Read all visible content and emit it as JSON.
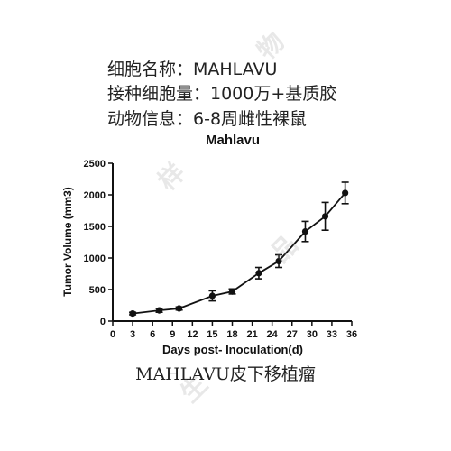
{
  "info": {
    "line1": "细胞名称：MAHLAVU",
    "line2": "接种细胞量：1000万+基质胶",
    "line3": "动物信息：6-8周雌性裸鼠"
  },
  "caption": "MAHLAVU皮下移植瘤",
  "watermark": [
    "样",
    "品",
    "物",
    "生"
  ],
  "chart_data": {
    "type": "line",
    "title": "Mahlavu",
    "xlabel": "Days post- Inoculation(d)",
    "ylabel": "Tumor Volume (mm3)",
    "xlim": [
      0,
      36
    ],
    "ylim": [
      0,
      2500
    ],
    "xticks": [
      0,
      3,
      6,
      9,
      12,
      15,
      18,
      21,
      24,
      27,
      30,
      33,
      36
    ],
    "yticks": [
      0,
      500,
      1000,
      1500,
      2000,
      2500
    ],
    "grid": false,
    "series": [
      {
        "x": [
          3,
          7,
          10,
          15,
          18,
          22,
          25,
          29,
          32,
          35
        ],
        "y": [
          120,
          170,
          200,
          400,
          470,
          760,
          950,
          1420,
          1660,
          2030
        ],
        "err": [
          20,
          30,
          25,
          80,
          40,
          90,
          100,
          160,
          220,
          170
        ],
        "color": "#111111"
      }
    ]
  }
}
